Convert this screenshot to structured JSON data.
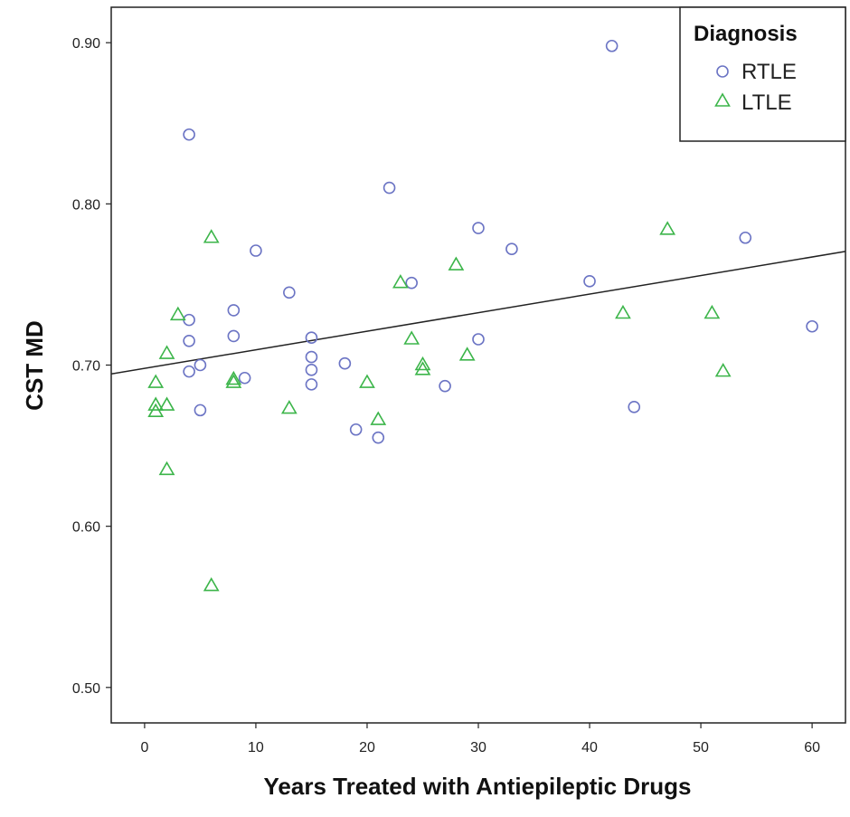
{
  "chart_data": {
    "type": "scatter",
    "xlabel": "Years Treated with Antiepileptic Drugs",
    "ylabel": "CST MD",
    "xlim": [
      -3,
      63
    ],
    "ylim": [
      0.478,
      0.922
    ],
    "xticks": [
      0,
      10,
      20,
      30,
      40,
      50,
      60
    ],
    "yticks": [
      0.5,
      0.6,
      0.7,
      0.8,
      0.9
    ],
    "xtick_labels": [
      "0",
      "10",
      "20",
      "30",
      "40",
      "50",
      "60"
    ],
    "ytick_labels": [
      "0.50",
      "0.60",
      "0.70",
      "0.80",
      "0.90"
    ],
    "grid": false,
    "legend": {
      "title": "Diagnosis",
      "placement": "top-right",
      "entries": [
        {
          "label": "RTLE",
          "marker": "circle",
          "color": "#6b74c4"
        },
        {
          "label": "LTLE",
          "marker": "triangle",
          "color": "#3cb54a"
        }
      ]
    },
    "series": [
      {
        "name": "RTLE",
        "marker": "circle",
        "color": "#6b74c4",
        "points": [
          [
            4,
            0.843
          ],
          [
            4,
            0.728
          ],
          [
            4,
            0.715
          ],
          [
            4,
            0.696
          ],
          [
            5,
            0.7
          ],
          [
            5,
            0.672
          ],
          [
            8,
            0.734
          ],
          [
            8,
            0.718
          ],
          [
            9,
            0.692
          ],
          [
            10,
            0.771
          ],
          [
            13,
            0.745
          ],
          [
            15,
            0.717
          ],
          [
            15,
            0.705
          ],
          [
            15,
            0.697
          ],
          [
            15,
            0.688
          ],
          [
            18,
            0.701
          ],
          [
            19,
            0.66
          ],
          [
            21,
            0.655
          ],
          [
            22,
            0.81
          ],
          [
            24,
            0.751
          ],
          [
            27,
            0.687
          ],
          [
            30,
            0.785
          ],
          [
            30,
            0.716
          ],
          [
            33,
            0.772
          ],
          [
            40,
            0.752
          ],
          [
            42,
            0.898
          ],
          [
            44,
            0.674
          ],
          [
            54,
            0.779
          ],
          [
            60,
            0.724
          ]
        ]
      },
      {
        "name": "LTLE",
        "marker": "triangle",
        "color": "#3cb54a",
        "points": [
          [
            1,
            0.689
          ],
          [
            1,
            0.675
          ],
          [
            1,
            0.671
          ],
          [
            2,
            0.707
          ],
          [
            2,
            0.675
          ],
          [
            2,
            0.635
          ],
          [
            3,
            0.731
          ],
          [
            6,
            0.779
          ],
          [
            6,
            0.563
          ],
          [
            8,
            0.691
          ],
          [
            8,
            0.689
          ],
          [
            13,
            0.673
          ],
          [
            20,
            0.689
          ],
          [
            21,
            0.666
          ],
          [
            23,
            0.751
          ],
          [
            24,
            0.716
          ],
          [
            25,
            0.7
          ],
          [
            25,
            0.697
          ],
          [
            28,
            0.762
          ],
          [
            29,
            0.706
          ],
          [
            43,
            0.732
          ],
          [
            47,
            0.784
          ],
          [
            51,
            0.732
          ],
          [
            52,
            0.696
          ]
        ]
      }
    ],
    "fit_line": {
      "type": "linear",
      "x": [
        -3,
        63
      ],
      "y": [
        0.6945,
        0.7705
      ],
      "color": "#222222"
    }
  }
}
